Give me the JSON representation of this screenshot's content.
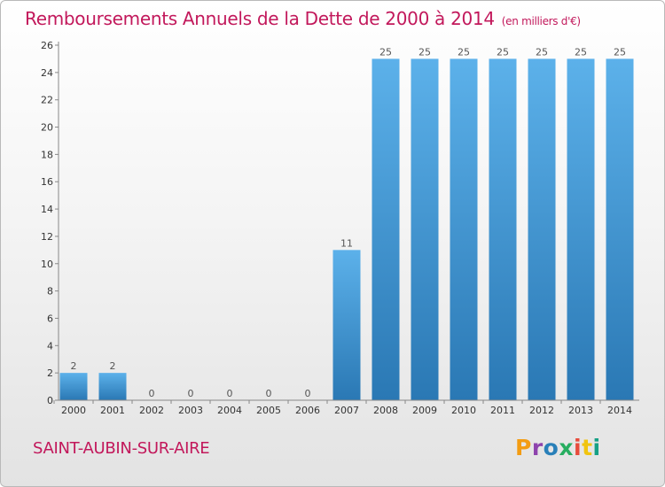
{
  "title": "Remboursements Annuels de la Dette de 2000 à 2014",
  "unit": "(en milliers d'€)",
  "city": "SAINT-AUBIN-SUR-AIRE",
  "logo": {
    "text": "Proxiti",
    "colors": [
      "#f39c12",
      "#8e44ad",
      "#2980b9",
      "#27ae60",
      "#e74c3c",
      "#f1c40f",
      "#16a085"
    ]
  },
  "colors": {
    "accent": "#c2185b",
    "bar_light": "#5aaee8",
    "bar_dark": "#2a78b4"
  },
  "chart_data": {
    "type": "bar",
    "categories": [
      "2000",
      "2001",
      "2002",
      "2003",
      "2004",
      "2005",
      "2006",
      "2007",
      "2008",
      "2009",
      "2010",
      "2011",
      "2012",
      "2013",
      "2014"
    ],
    "values": [
      2,
      2,
      0,
      0,
      0,
      0,
      0,
      11,
      25,
      25,
      25,
      25,
      25,
      25,
      25
    ],
    "title": "Remboursements Annuels de la Dette de 2000 à 2014",
    "xlabel": "",
    "ylabel": "",
    "ylim": [
      0,
      26
    ],
    "yticks": [
      0,
      2,
      4,
      6,
      8,
      10,
      12,
      14,
      16,
      18,
      20,
      22,
      24,
      26
    ],
    "grid": false,
    "legend": "none"
  }
}
